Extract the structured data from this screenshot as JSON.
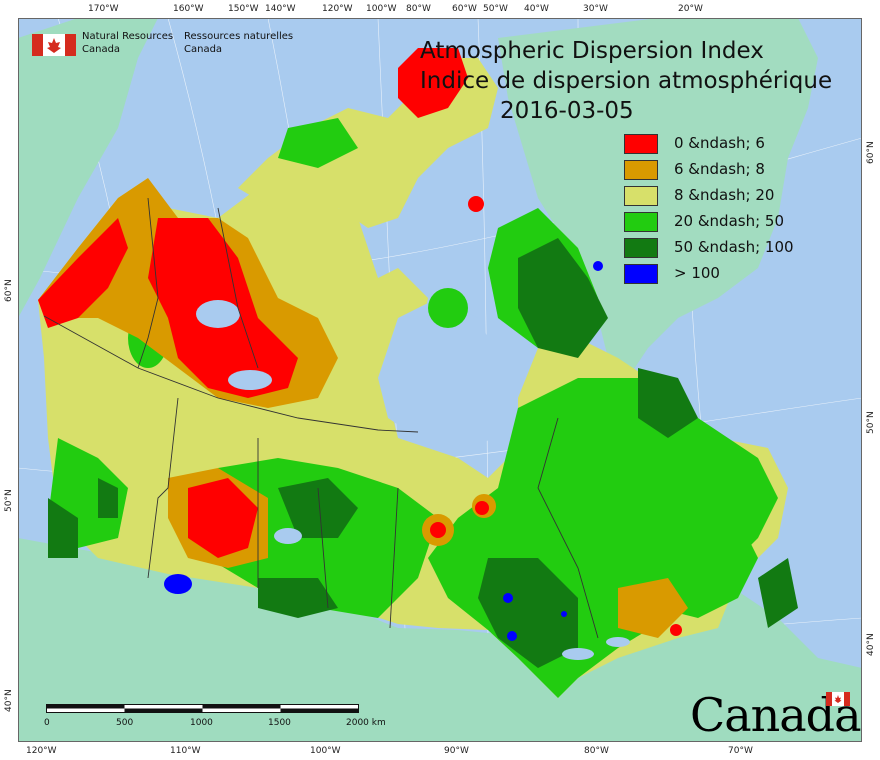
{
  "title": {
    "line1": "Atmospheric Dispersion Index",
    "line2": "Indice de dispersion atmosphérique",
    "date": "2016-03-05"
  },
  "agency": {
    "en_line1": "Natural Resources",
    "en_line2": "Canada",
    "fr_line1": "Ressources naturelles",
    "fr_line2": "Canada"
  },
  "wordmark": "Canada",
  "legend": [
    {
      "label": "0 &ndash; 6",
      "color": "#ff0000"
    },
    {
      "label": "6 &ndash; 8",
      "color": "#d99a00"
    },
    {
      "label": "8 &ndash; 20",
      "color": "#d7e06a"
    },
    {
      "label": "20 &ndash; 50",
      "color": "#22cc10"
    },
    {
      "label": "50 &ndash; 100",
      "color": "#127a12"
    },
    {
      "label": "> 100",
      "color": "#0000ff"
    }
  ],
  "scalebar": {
    "labels": [
      "0",
      "500",
      "1000",
      "1500",
      "2000 km"
    ]
  },
  "ticks": {
    "top": [
      "170°W",
      "160°W",
      "150°W",
      "140°W",
      "120°W",
      "100°W",
      "80°W",
      "60°W",
      "50°W",
      "40°W",
      "30°W",
      "20°W"
    ],
    "bottom": [
      "120°W",
      "110°W",
      "100°W",
      "90°W",
      "80°W",
      "70°W"
    ],
    "left": [
      "60°N",
      "50°N",
      "40°N"
    ],
    "right": [
      "60°N",
      "50°N",
      "40°N"
    ]
  },
  "colors": {
    "ocean": "#a9cbef",
    "land_other": "#9fdcbf",
    "greenland": "#a2dcc0",
    "boundary": "#333333"
  }
}
